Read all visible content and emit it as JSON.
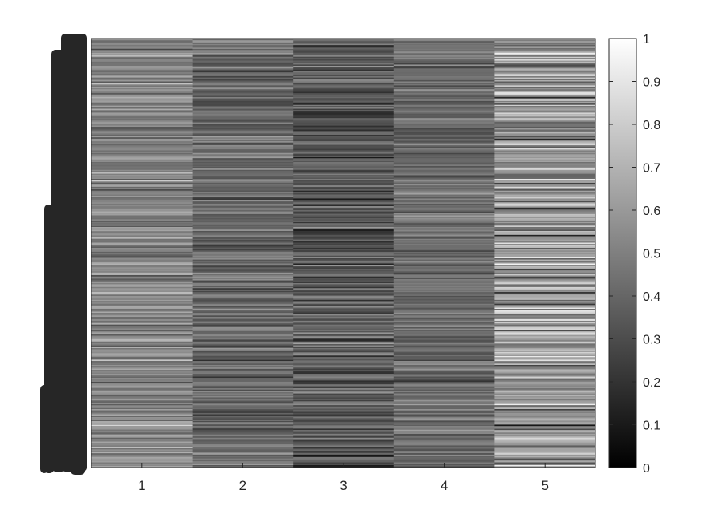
{
  "chart_data": {
    "type": "heatmap",
    "colormap": "gray",
    "row_count": 330,
    "columns": [
      "1",
      "2",
      "3",
      "4",
      "5"
    ],
    "column_means": [
      0.52,
      0.42,
      0.36,
      0.42,
      0.58
    ],
    "column_spreads": [
      0.2,
      0.18,
      0.2,
      0.16,
      0.3
    ],
    "color_range": [
      0,
      1
    ],
    "colorbar": {
      "ticks": [
        "0",
        "0.1",
        "0.2",
        "0.3",
        "0.4",
        "0.5",
        "0.6",
        "0.7",
        "0.8",
        "0.9",
        "1"
      ],
      "placement": "right"
    },
    "y_tick_labels": "overlapping row labels, illegible",
    "grid": false
  }
}
